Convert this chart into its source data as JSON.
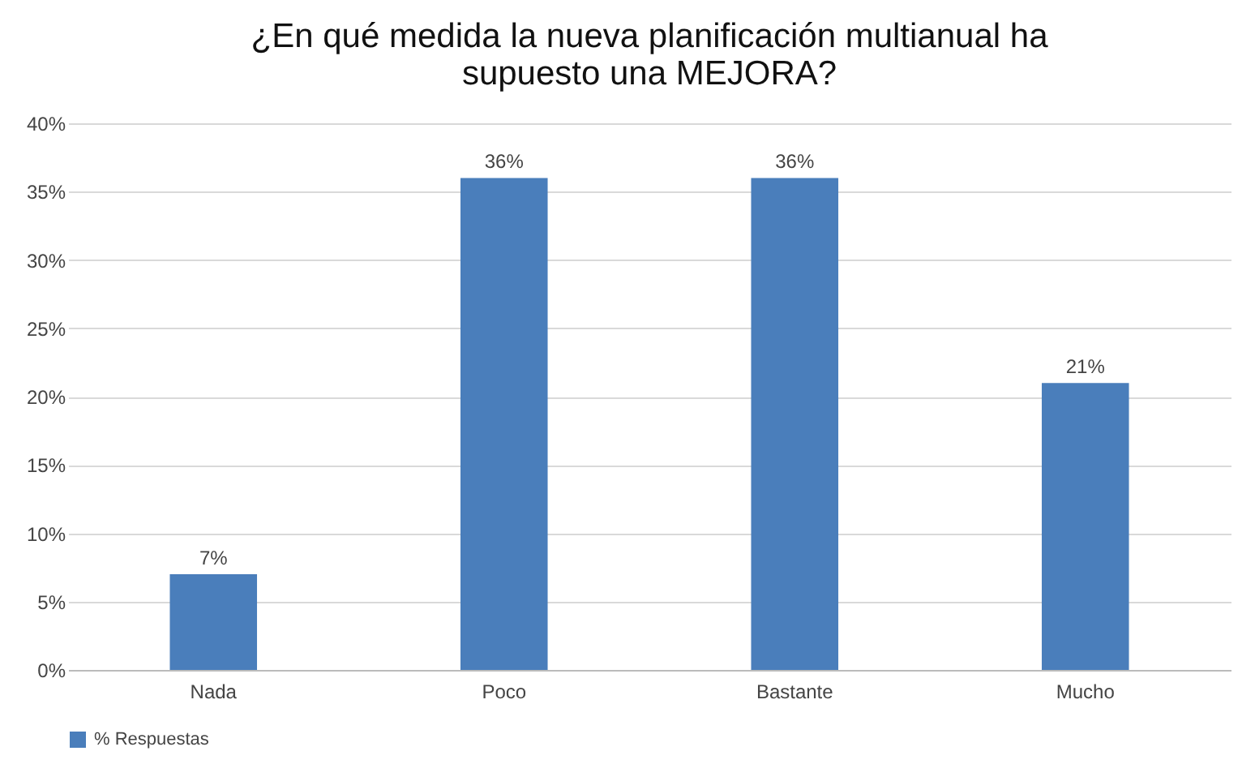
{
  "chart_data": {
    "type": "bar",
    "title": "¿En qué medida la nueva planificación multianual ha supuesto una MEJORA?",
    "categories": [
      "Nada",
      "Poco",
      "Bastante",
      "Mucho"
    ],
    "series": [
      {
        "name": "% Respuestas",
        "color": "#4a7ebb",
        "values": [
          7,
          36,
          36,
          21
        ],
        "value_labels": [
          "7%",
          "36%",
          "36%",
          "21%"
        ]
      }
    ],
    "ylim": [
      0,
      40
    ],
    "yticks": [
      {
        "value": 0,
        "label": "0%"
      },
      {
        "value": 5,
        "label": "5%"
      },
      {
        "value": 10,
        "label": "10%"
      },
      {
        "value": 15,
        "label": "15%"
      },
      {
        "value": 20,
        "label": "20%"
      },
      {
        "value": 25,
        "label": "25%"
      },
      {
        "value": 30,
        "label": "30%"
      },
      {
        "value": 35,
        "label": "35%"
      },
      {
        "value": 40,
        "label": "40%"
      }
    ],
    "grid": "y",
    "legend": "bottom"
  }
}
